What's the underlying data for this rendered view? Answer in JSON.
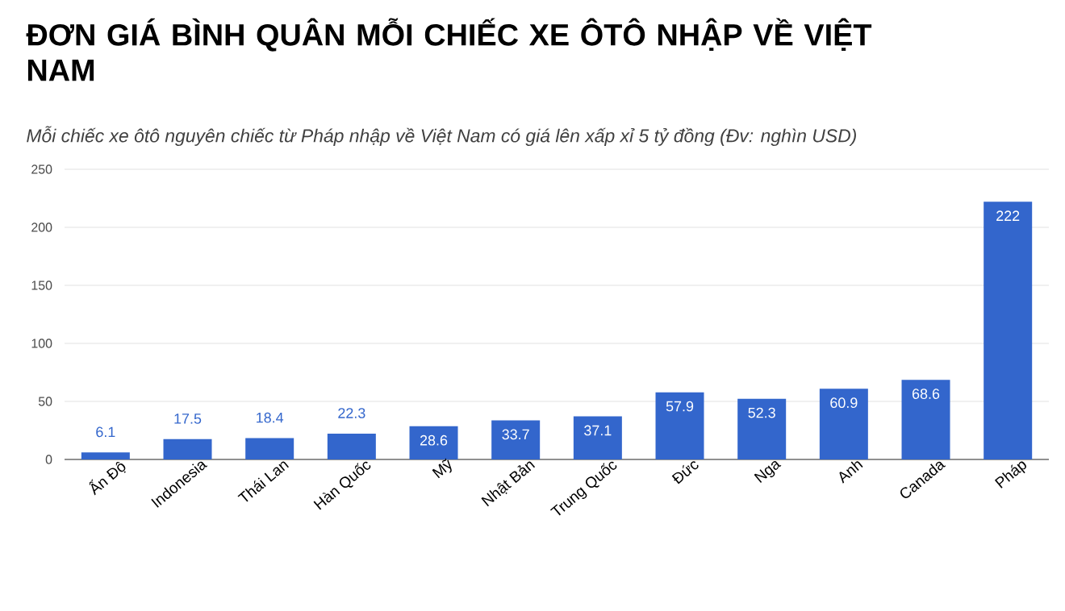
{
  "chart_data": {
    "type": "bar",
    "title": "ĐƠN GIÁ BÌNH QUÂN MỖI CHIẾC XE ÔTÔ NHẬP VỀ VIỆT NAM",
    "subtitle": "Mỗi chiếc xe ôtô nguyên chiếc từ Pháp nhập về Việt Nam có giá lên xấp xỉ 5 tỷ đồng (Đv: nghìn USD)",
    "categories": [
      "Ấn Độ",
      "Indonesia",
      "Thái Lan",
      "Hàn Quốc",
      "Mỹ",
      "Nhật Bản",
      "Trung Quốc",
      "Đức",
      "Nga",
      "Anh",
      "Canada",
      "Pháp"
    ],
    "values": [
      6.1,
      17.5,
      18.4,
      22.3,
      28.6,
      33.7,
      37.1,
      57.9,
      52.3,
      60.9,
      68.6,
      222
    ],
    "color": "#3366cc",
    "ylim": [
      0,
      250
    ],
    "yticks": [
      0,
      50,
      100,
      150,
      200,
      250
    ],
    "grid": "y",
    "data_labels": true
  }
}
